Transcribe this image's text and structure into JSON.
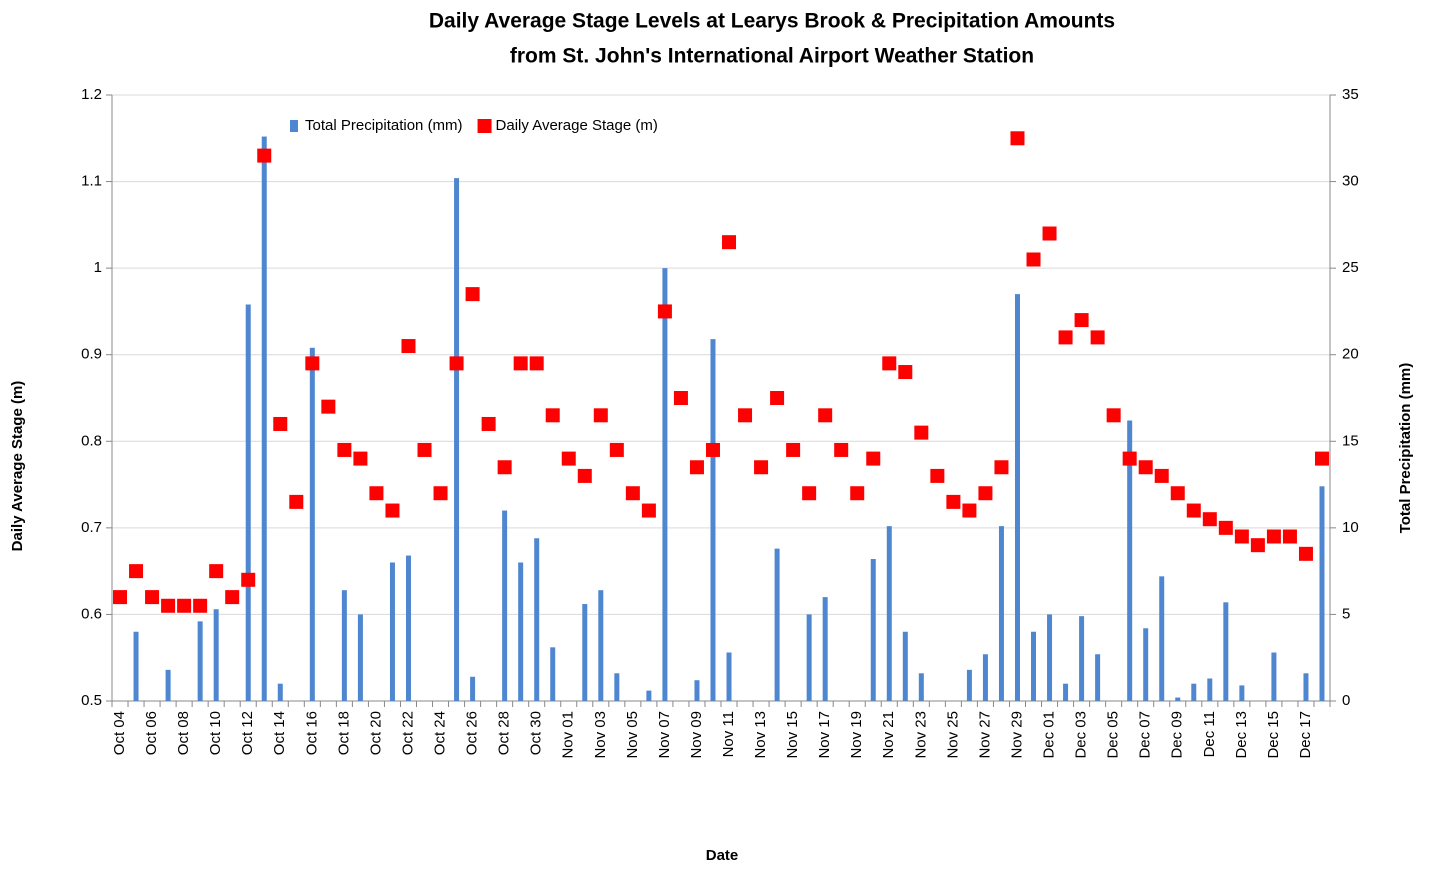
{
  "chart_data": {
    "type": "combo",
    "title": [
      "Daily Average Stage Levels at Learys Brook & Precipitation Amounts",
      "from St. John's International Airport Weather Station"
    ],
    "x_label": "Date",
    "y_label": "Daily Average Stage (m)",
    "y2_label": "Total Precipitation (mm)",
    "categories": [
      "Oct 04",
      null,
      "Oct 06",
      null,
      "Oct 08",
      null,
      "Oct 10",
      null,
      "Oct 12",
      null,
      "Oct 14",
      null,
      "Oct 16",
      null,
      "Oct 18",
      null,
      "Oct 20",
      null,
      "Oct 22",
      null,
      "Oct 24",
      null,
      "Oct 26",
      null,
      "Oct 28",
      null,
      "Oct 30",
      null,
      "Nov 01",
      null,
      "Nov 03",
      null,
      "Nov 05",
      null,
      "Nov 07",
      null,
      "Nov 09",
      null,
      "Nov 11",
      null,
      "Nov 13",
      null,
      "Nov 15",
      null,
      "Nov 17",
      null,
      "Nov 19",
      null,
      "Nov 21",
      null,
      "Nov 23",
      null,
      "Nov 25",
      null,
      "Nov 27",
      null,
      "Nov 29",
      null,
      "Dec 01",
      null,
      "Dec 03",
      null,
      "Dec 05",
      null,
      "Dec 07",
      null,
      "Dec 09",
      null,
      "Dec 11",
      null,
      "Dec 13",
      null,
      "Dec 15",
      null,
      "Dec 17",
      null
    ],
    "series": [
      {
        "name": "Total Precipitation (mm)",
        "type": "bar",
        "axis": "y2",
        "color": "#4f86d0",
        "values": [
          0,
          4.0,
          0,
          1.8,
          0,
          4.6,
          5.3,
          0,
          22.9,
          32.6,
          1.0,
          0,
          20.4,
          0,
          6.4,
          5.0,
          0,
          8.0,
          8.4,
          0,
          0,
          30.2,
          1.4,
          0,
          11.0,
          8.0,
          9.4,
          3.1,
          0,
          5.6,
          6.4,
          1.6,
          0,
          0.6,
          25.0,
          0,
          1.2,
          20.9,
          2.8,
          0,
          0,
          8.8,
          0,
          5.0,
          6.0,
          0,
          0,
          8.2,
          10.1,
          4.0,
          1.6,
          0,
          0,
          1.8,
          2.7,
          10.1,
          23.5,
          4.0,
          5.0,
          1.0,
          4.9,
          2.7,
          0,
          16.2,
          4.2,
          7.2,
          0.2,
          1.0,
          1.3,
          5.7,
          0.9,
          0,
          2.8,
          0,
          1.6,
          12.4
        ]
      },
      {
        "name": "Daily Average Stage (m)",
        "type": "scatter",
        "axis": "y",
        "color": "#ff0000",
        "values": [
          0.62,
          0.65,
          0.62,
          0.61,
          0.61,
          0.61,
          0.65,
          0.62,
          0.64,
          1.13,
          0.82,
          0.73,
          0.89,
          0.84,
          0.79,
          0.78,
          0.74,
          0.72,
          0.91,
          0.79,
          0.74,
          0.89,
          0.97,
          0.82,
          0.77,
          0.89,
          0.89,
          0.83,
          0.78,
          0.76,
          0.83,
          0.79,
          0.74,
          0.72,
          0.95,
          0.85,
          0.77,
          0.79,
          1.03,
          0.83,
          0.77,
          0.85,
          0.79,
          0.74,
          0.83,
          0.79,
          0.74,
          0.78,
          0.89,
          0.88,
          0.81,
          0.76,
          0.73,
          0.72,
          0.74,
          0.77,
          1.15,
          1.01,
          1.04,
          0.92,
          0.94,
          0.92,
          0.83,
          0.78,
          0.77,
          0.76,
          0.74,
          0.72,
          0.71,
          0.7,
          0.69,
          0.68,
          0.69,
          0.69,
          0.67,
          0.78
        ]
      }
    ],
    "ylim": [
      0.5,
      1.2
    ],
    "yticks": [
      0.5,
      0.6,
      0.7,
      0.8,
      0.9,
      1,
      1.1,
      1.2
    ],
    "y2lim": [
      0,
      35
    ],
    "y2ticks": [
      0,
      5,
      10,
      15,
      20,
      25,
      30,
      35
    ],
    "grid": true,
    "legend": "top-left"
  }
}
